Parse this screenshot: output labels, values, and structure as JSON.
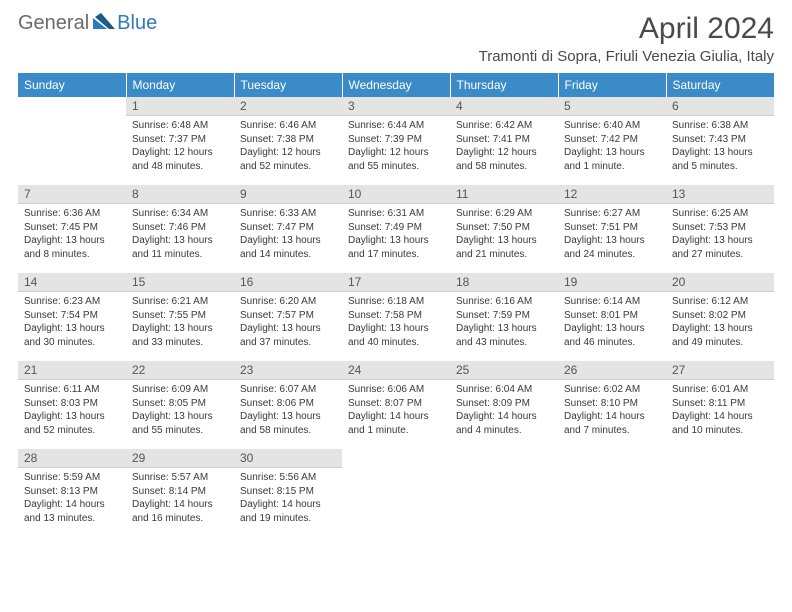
{
  "logo": {
    "text1": "General",
    "text2": "Blue"
  },
  "title": "April 2024",
  "location": "Tramonti di Sopra, Friuli Venezia Giulia, Italy",
  "colors": {
    "header_bg": "#3b8bc9",
    "header_text": "#ffffff",
    "daynum_bg": "#e4e4e4",
    "daynum_text": "#555555",
    "body_text": "#3a3a3a",
    "logo_gray": "#6a6a6a",
    "logo_blue": "#2f7ab8",
    "title_color": "#4a4a4a"
  },
  "day_headers": [
    "Sunday",
    "Monday",
    "Tuesday",
    "Wednesday",
    "Thursday",
    "Friday",
    "Saturday"
  ],
  "weeks": [
    [
      null,
      {
        "n": "1",
        "sr": "Sunrise: 6:48 AM",
        "ss": "Sunset: 7:37 PM",
        "d1": "Daylight: 12 hours",
        "d2": "and 48 minutes."
      },
      {
        "n": "2",
        "sr": "Sunrise: 6:46 AM",
        "ss": "Sunset: 7:38 PM",
        "d1": "Daylight: 12 hours",
        "d2": "and 52 minutes."
      },
      {
        "n": "3",
        "sr": "Sunrise: 6:44 AM",
        "ss": "Sunset: 7:39 PM",
        "d1": "Daylight: 12 hours",
        "d2": "and 55 minutes."
      },
      {
        "n": "4",
        "sr": "Sunrise: 6:42 AM",
        "ss": "Sunset: 7:41 PM",
        "d1": "Daylight: 12 hours",
        "d2": "and 58 minutes."
      },
      {
        "n": "5",
        "sr": "Sunrise: 6:40 AM",
        "ss": "Sunset: 7:42 PM",
        "d1": "Daylight: 13 hours",
        "d2": "and 1 minute."
      },
      {
        "n": "6",
        "sr": "Sunrise: 6:38 AM",
        "ss": "Sunset: 7:43 PM",
        "d1": "Daylight: 13 hours",
        "d2": "and 5 minutes."
      }
    ],
    [
      {
        "n": "7",
        "sr": "Sunrise: 6:36 AM",
        "ss": "Sunset: 7:45 PM",
        "d1": "Daylight: 13 hours",
        "d2": "and 8 minutes."
      },
      {
        "n": "8",
        "sr": "Sunrise: 6:34 AM",
        "ss": "Sunset: 7:46 PM",
        "d1": "Daylight: 13 hours",
        "d2": "and 11 minutes."
      },
      {
        "n": "9",
        "sr": "Sunrise: 6:33 AM",
        "ss": "Sunset: 7:47 PM",
        "d1": "Daylight: 13 hours",
        "d2": "and 14 minutes."
      },
      {
        "n": "10",
        "sr": "Sunrise: 6:31 AM",
        "ss": "Sunset: 7:49 PM",
        "d1": "Daylight: 13 hours",
        "d2": "and 17 minutes."
      },
      {
        "n": "11",
        "sr": "Sunrise: 6:29 AM",
        "ss": "Sunset: 7:50 PM",
        "d1": "Daylight: 13 hours",
        "d2": "and 21 minutes."
      },
      {
        "n": "12",
        "sr": "Sunrise: 6:27 AM",
        "ss": "Sunset: 7:51 PM",
        "d1": "Daylight: 13 hours",
        "d2": "and 24 minutes."
      },
      {
        "n": "13",
        "sr": "Sunrise: 6:25 AM",
        "ss": "Sunset: 7:53 PM",
        "d1": "Daylight: 13 hours",
        "d2": "and 27 minutes."
      }
    ],
    [
      {
        "n": "14",
        "sr": "Sunrise: 6:23 AM",
        "ss": "Sunset: 7:54 PM",
        "d1": "Daylight: 13 hours",
        "d2": "and 30 minutes."
      },
      {
        "n": "15",
        "sr": "Sunrise: 6:21 AM",
        "ss": "Sunset: 7:55 PM",
        "d1": "Daylight: 13 hours",
        "d2": "and 33 minutes."
      },
      {
        "n": "16",
        "sr": "Sunrise: 6:20 AM",
        "ss": "Sunset: 7:57 PM",
        "d1": "Daylight: 13 hours",
        "d2": "and 37 minutes."
      },
      {
        "n": "17",
        "sr": "Sunrise: 6:18 AM",
        "ss": "Sunset: 7:58 PM",
        "d1": "Daylight: 13 hours",
        "d2": "and 40 minutes."
      },
      {
        "n": "18",
        "sr": "Sunrise: 6:16 AM",
        "ss": "Sunset: 7:59 PM",
        "d1": "Daylight: 13 hours",
        "d2": "and 43 minutes."
      },
      {
        "n": "19",
        "sr": "Sunrise: 6:14 AM",
        "ss": "Sunset: 8:01 PM",
        "d1": "Daylight: 13 hours",
        "d2": "and 46 minutes."
      },
      {
        "n": "20",
        "sr": "Sunrise: 6:12 AM",
        "ss": "Sunset: 8:02 PM",
        "d1": "Daylight: 13 hours",
        "d2": "and 49 minutes."
      }
    ],
    [
      {
        "n": "21",
        "sr": "Sunrise: 6:11 AM",
        "ss": "Sunset: 8:03 PM",
        "d1": "Daylight: 13 hours",
        "d2": "and 52 minutes."
      },
      {
        "n": "22",
        "sr": "Sunrise: 6:09 AM",
        "ss": "Sunset: 8:05 PM",
        "d1": "Daylight: 13 hours",
        "d2": "and 55 minutes."
      },
      {
        "n": "23",
        "sr": "Sunrise: 6:07 AM",
        "ss": "Sunset: 8:06 PM",
        "d1": "Daylight: 13 hours",
        "d2": "and 58 minutes."
      },
      {
        "n": "24",
        "sr": "Sunrise: 6:06 AM",
        "ss": "Sunset: 8:07 PM",
        "d1": "Daylight: 14 hours",
        "d2": "and 1 minute."
      },
      {
        "n": "25",
        "sr": "Sunrise: 6:04 AM",
        "ss": "Sunset: 8:09 PM",
        "d1": "Daylight: 14 hours",
        "d2": "and 4 minutes."
      },
      {
        "n": "26",
        "sr": "Sunrise: 6:02 AM",
        "ss": "Sunset: 8:10 PM",
        "d1": "Daylight: 14 hours",
        "d2": "and 7 minutes."
      },
      {
        "n": "27",
        "sr": "Sunrise: 6:01 AM",
        "ss": "Sunset: 8:11 PM",
        "d1": "Daylight: 14 hours",
        "d2": "and 10 minutes."
      }
    ],
    [
      {
        "n": "28",
        "sr": "Sunrise: 5:59 AM",
        "ss": "Sunset: 8:13 PM",
        "d1": "Daylight: 14 hours",
        "d2": "and 13 minutes."
      },
      {
        "n": "29",
        "sr": "Sunrise: 5:57 AM",
        "ss": "Sunset: 8:14 PM",
        "d1": "Daylight: 14 hours",
        "d2": "and 16 minutes."
      },
      {
        "n": "30",
        "sr": "Sunrise: 5:56 AM",
        "ss": "Sunset: 8:15 PM",
        "d1": "Daylight: 14 hours",
        "d2": "and 19 minutes."
      },
      null,
      null,
      null,
      null
    ]
  ]
}
